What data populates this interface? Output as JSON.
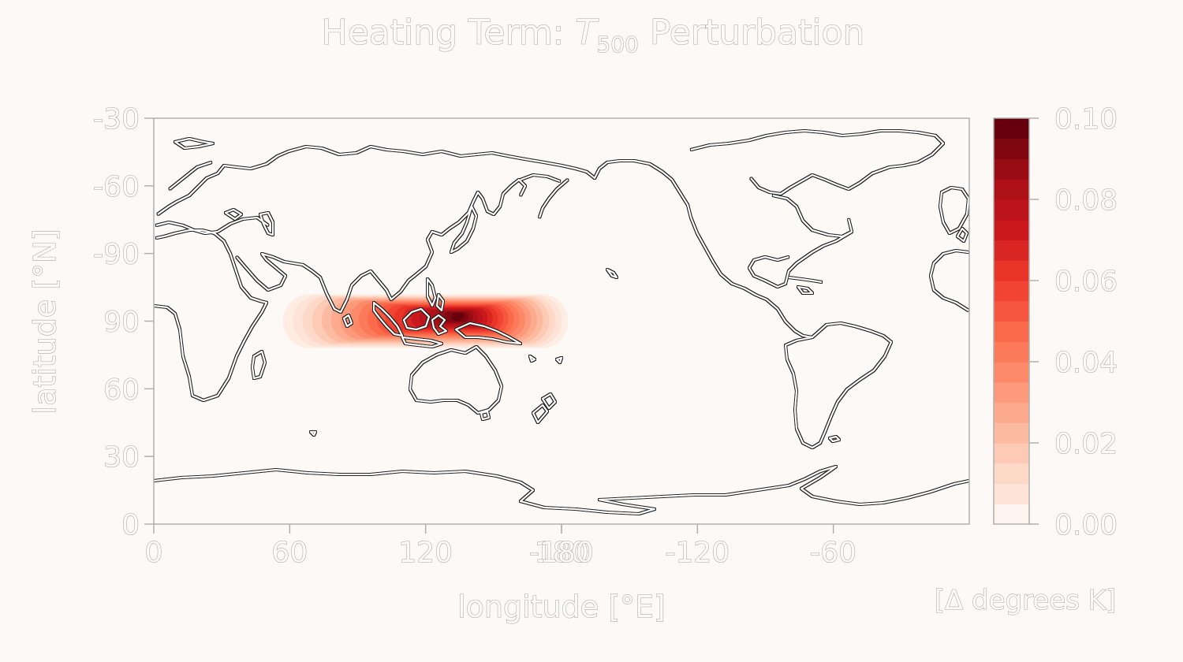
{
  "chart_data": {
    "type": "heatmap",
    "title": "Heating Term",
    "title_sep": ": ",
    "title_var": "T",
    "title_var_sub": "500",
    "title_suffix": " Perturbation",
    "xlabel": "longitude [°E]",
    "ylabel": "latitude [°N]",
    "x_ticks": [
      "0",
      "60",
      "120",
      "180",
      "-180",
      "-120",
      "-60"
    ],
    "x_tick_positions": [
      0,
      60,
      120,
      180,
      180,
      240,
      300
    ],
    "y_ticks": [
      "-30",
      "-60",
      "-90",
      "90",
      "60",
      "30",
      "0"
    ],
    "xlim": [
      0,
      360
    ],
    "ylim": [
      -90,
      90
    ],
    "colorbar": {
      "ticks": [
        "0.10",
        "0.08",
        "0.06",
        "0.04",
        "0.02",
        "0.00"
      ],
      "tick_values": [
        0.1,
        0.08,
        0.06,
        0.04,
        0.02,
        0.0
      ],
      "range": [
        0.0,
        0.1
      ],
      "label": "[Δ degrees K]",
      "colormap": "Reds",
      "levels": 20
    },
    "perturbation": {
      "center_lon": 120,
      "center_lat": 0,
      "lon_extent": [
        57,
        183
      ],
      "lat_extent": [
        -12,
        12
      ],
      "max_value": 0.1,
      "peak_lon": 135,
      "peak_lat": 2
    },
    "coastlines": true,
    "grid": false
  },
  "colors": {
    "background": "#fdf9f6",
    "text_fill": "#fdf9f6",
    "text_stroke": "#a8a8a8",
    "coastline": "#ffffff"
  }
}
